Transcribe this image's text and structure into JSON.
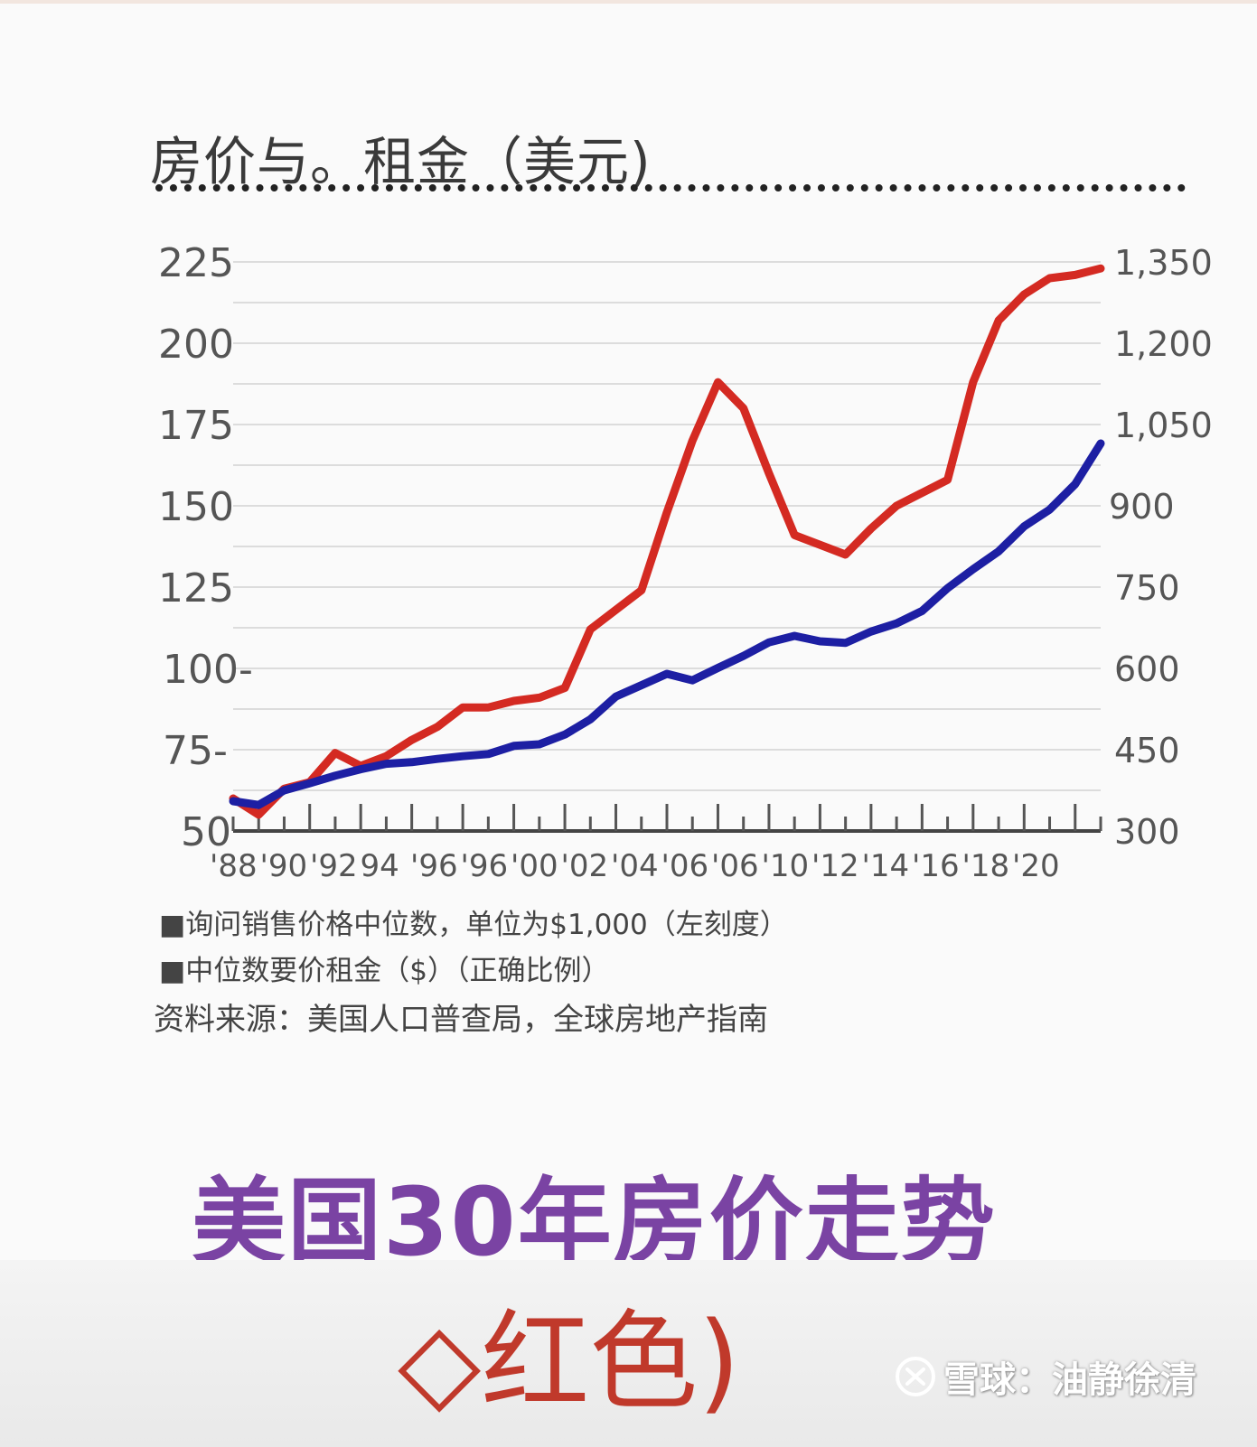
{
  "header": {
    "title": "房价与。租金（美元)"
  },
  "chart_data": {
    "type": "line",
    "title": "房价与。租金（美元)",
    "x": [
      1988,
      1989,
      1990,
      1991,
      1992,
      1993,
      1994,
      1995,
      1996,
      1997,
      1998,
      1999,
      2000,
      2001,
      2002,
      2003,
      2004,
      2005,
      2006,
      2007,
      2008,
      2009,
      2010,
      2011,
      2012,
      2013,
      2014,
      2015,
      2016,
      2017,
      2018,
      2019,
      2020,
      2021,
      2022
    ],
    "xtick_labels": [
      "'88",
      "'90",
      "'92",
      "94",
      "'96",
      "'96",
      "'00",
      "'02",
      "'04",
      "'06",
      "'06",
      "'10",
      "'12",
      "'14",
      "'16",
      "'18",
      "'20"
    ],
    "y_left_ticks": [
      "225",
      "200",
      "175",
      "150",
      "125",
      "100-",
      "75-",
      "50"
    ],
    "y_right_ticks": [
      "1,350",
      "1,200",
      "1,050",
      "900",
      "750",
      "600",
      "450",
      "300"
    ],
    "ylim_left": [
      50,
      225
    ],
    "ylim_right": [
      300,
      1350
    ],
    "grid": true,
    "series": [
      {
        "axis": "left",
        "color": "#d42a22",
        "values": [
          60,
          55,
          63,
          65,
          74,
          70,
          73,
          78,
          82,
          88,
          88,
          90,
          91,
          94,
          112,
          118,
          124,
          148,
          170,
          188,
          180,
          160,
          141,
          138,
          135,
          143,
          150,
          154,
          158,
          188,
          207,
          215,
          220,
          221,
          223
        ]
      },
      {
        "axis": "right",
        "color": "#1d1fa3",
        "values": [
          355,
          348,
          375,
          388,
          402,
          414,
          424,
          427,
          433,
          438,
          442,
          457,
          460,
          478,
          506,
          548,
          569,
          590,
          578,
          601,
          623,
          648,
          660,
          650,
          647,
          668,
          683,
          706,
          748,
          783,
          816,
          862,
          893,
          940,
          1015
        ]
      }
    ],
    "legend": [
      "■询问销售价格中位数，单位为$1,000（左刻度）",
      "■中位数要价租金（$）（正确比例）"
    ],
    "legend_position": "bottom-left",
    "source": "资料来源：美国人口普查局，全球房地产指南"
  },
  "caption": {
    "line1": "美国30年房价走势",
    "line2": "◇红色)"
  },
  "watermark": {
    "text": "雪球：油静徐清"
  }
}
